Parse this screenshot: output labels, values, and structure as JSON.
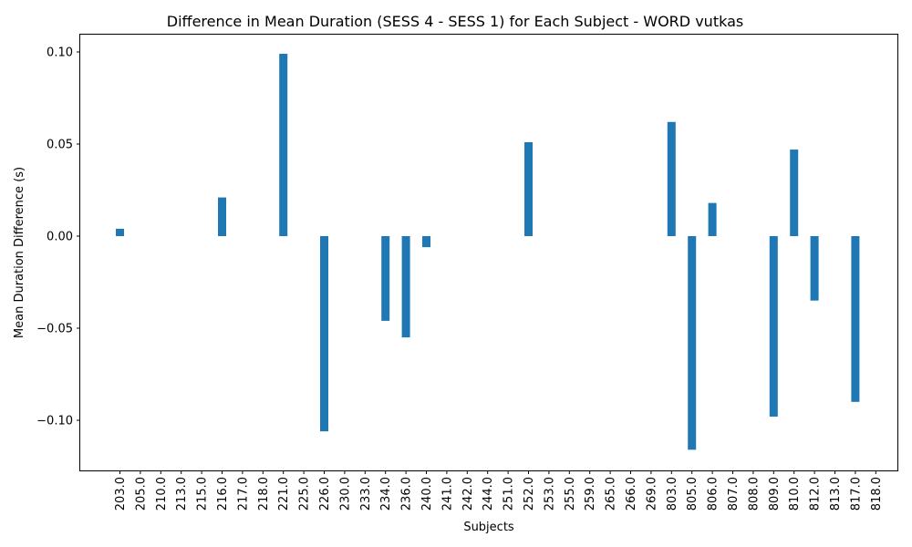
{
  "chart_data": {
    "type": "bar",
    "title": "Difference in Mean Duration (SESS 4 - SESS 1) for Each Subject - WORD vutkas",
    "xlabel": "Subjects",
    "ylabel": "Mean Duration Difference (s)",
    "ylim": [
      -0.126,
      0.11
    ],
    "yticks": [
      "0.10",
      "0.05",
      "0.00",
      "−0.05",
      "−0.10"
    ],
    "ytick_values": [
      0.1,
      0.05,
      0.0,
      -0.05,
      -0.1
    ],
    "bar_color": "#1f77b4",
    "grid": false,
    "categories": [
      "203.0",
      "205.0",
      "210.0",
      "213.0",
      "215.0",
      "216.0",
      "217.0",
      "218.0",
      "221.0",
      "225.0",
      "226.0",
      "230.0",
      "233.0",
      "234.0",
      "236.0",
      "240.0",
      "241.0",
      "242.0",
      "244.0",
      "251.0",
      "252.0",
      "253.0",
      "255.0",
      "259.0",
      "265.0",
      "266.0",
      "269.0",
      "803.0",
      "805.0",
      "806.0",
      "807.0",
      "808.0",
      "809.0",
      "810.0",
      "812.0",
      "813.0",
      "817.0",
      "818.0"
    ],
    "values": [
      0.004,
      0,
      0,
      0,
      0,
      0.021,
      0,
      0,
      0.099,
      0,
      -0.106,
      0,
      0,
      -0.046,
      -0.055,
      -0.006,
      0,
      0,
      0,
      0,
      0.051,
      0,
      0,
      0,
      0,
      0,
      0,
      0.062,
      -0.116,
      0.018,
      0,
      0,
      -0.098,
      0.047,
      -0.035,
      0,
      -0.09,
      0
    ]
  }
}
